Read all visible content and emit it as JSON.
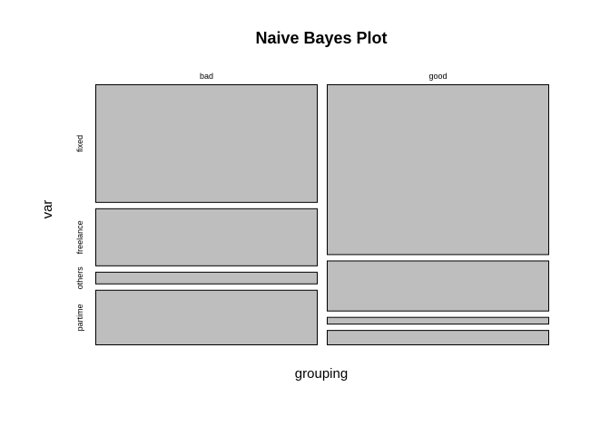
{
  "chart_data": {
    "type": "mosaic",
    "title": "Naive Bayes Plot",
    "xlabel": "grouping",
    "ylabel": "var",
    "columns": [
      "bad",
      "good"
    ],
    "column_proportions": [
      0.5,
      0.5
    ],
    "rows": [
      "fixed",
      "freelance",
      "others",
      "partime"
    ],
    "series": [
      {
        "name": "bad",
        "values": [
          0.47,
          0.23,
          0.05,
          0.22
        ]
      },
      {
        "name": "good",
        "values": [
          0.67,
          0.2,
          0.03,
          0.06
        ]
      }
    ],
    "colors": {
      "tile_fill": "#bebebe",
      "tile_stroke": "#000000"
    },
    "grid": false,
    "legend": "none"
  }
}
